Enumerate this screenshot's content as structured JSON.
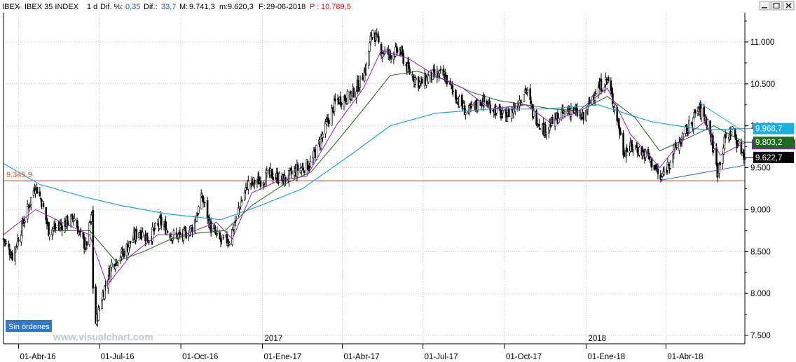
{
  "header": {
    "symbol": "IBEX",
    "name": "IBEX 35 INDEX",
    "timeframe": "1 d",
    "dif_pct_label": "Dif. %:",
    "dif_pct_value": "0,35",
    "dif_label": "Dif.:",
    "dif_value": "33,7",
    "max_label": "M:",
    "max_value": "9.741,3",
    "min_label": "m:",
    "min_value": "9.620,3",
    "date_label": "F:",
    "date_value": "29-06-2018",
    "p_label": "P :",
    "p_value": "10.789,5"
  },
  "window_buttons": [
    "minimize",
    "maximize",
    "close"
  ],
  "orders_badge": "Sin órdenes",
  "watermark": "www.visualchart.com",
  "colors": {
    "price": "#000000",
    "ma_fast": "#8b1fc4",
    "ma_mid": "#1e5e1e",
    "ma_slow": "#19a6de",
    "support_line": "#e0502a",
    "trend_line": "#2a6fd6",
    "label_fast": "#1aaee3",
    "label_mid": "#1e6b1e",
    "label_price": "#000000",
    "label_violet": "#8b1fc4",
    "badge": "#2a7bd0",
    "accent_red": "#d8131a",
    "accent_blue": "#1f58c8"
  },
  "chart_data": {
    "type": "candlestick",
    "instrument": "IBEX 35 INDEX",
    "timeframe": "1 d",
    "x_start": "2016-03-15",
    "x_end": "2018-06-29",
    "ylim": [
      7400,
      11350
    ],
    "y_ticks": [
      7500,
      8000,
      8500,
      9000,
      9500,
      10000,
      10500,
      11000
    ],
    "y_tick_labels": [
      "7.500",
      "8.000",
      "8.500",
      "9.000",
      "9.500",
      "10.000",
      "10.500",
      "11.000"
    ],
    "x_ticks": [
      "2016-04-01",
      "2016-07-01",
      "2016-10-01",
      "2017-01-01",
      "2017-04-01",
      "2017-07-01",
      "2017-10-01",
      "2018-01-01",
      "2018-04-01"
    ],
    "x_tick_labels": [
      "01-Abr-16",
      "01-Jul-16",
      "01-Oct-16",
      "01-Ene-17",
      "01-Abr-17",
      "01-Jul-17",
      "01-Oct-17",
      "01-Ene-18",
      "01-Abr-18"
    ],
    "year_markers": [
      {
        "date": "2017-01-01",
        "label": "2017"
      },
      {
        "date": "2018-01-01",
        "label": "2018"
      }
    ],
    "price_path": [
      [
        "2016-03-15",
        8650
      ],
      [
        "2016-03-25",
        8450
      ],
      [
        "2016-04-08",
        8900
      ],
      [
        "2016-04-20",
        9300
      ],
      [
        "2016-04-27",
        9100
      ],
      [
        "2016-05-05",
        8750
      ],
      [
        "2016-05-20",
        8820
      ],
      [
        "2016-06-03",
        8900
      ],
      [
        "2016-06-09",
        8700
      ],
      [
        "2016-06-16",
        8550
      ],
      [
        "2016-06-23",
        8950
      ],
      [
        "2016-06-24",
        8080
      ],
      [
        "2016-06-27",
        7650
      ],
      [
        "2016-07-05",
        8000
      ],
      [
        "2016-07-15",
        8350
      ],
      [
        "2016-07-29",
        8500
      ],
      [
        "2016-08-15",
        8750
      ],
      [
        "2016-08-25",
        8650
      ],
      [
        "2016-09-08",
        8850
      ],
      [
        "2016-09-20",
        8700
      ],
      [
        "2016-10-03",
        8680
      ],
      [
        "2016-10-15",
        8800
      ],
      [
        "2016-10-25",
        9150
      ],
      [
        "2016-11-04",
        8780
      ],
      [
        "2016-11-15",
        8620
      ],
      [
        "2016-11-25",
        8640
      ],
      [
        "2016-12-05",
        9000
      ],
      [
        "2016-12-15",
        9300
      ],
      [
        "2016-12-30",
        9350
      ],
      [
        "2017-01-10",
        9420
      ],
      [
        "2017-01-25",
        9350
      ],
      [
        "2017-02-10",
        9480
      ],
      [
        "2017-02-25",
        9550
      ],
      [
        "2017-03-10",
        9900
      ],
      [
        "2017-03-25",
        10300
      ],
      [
        "2017-04-10",
        10350
      ],
      [
        "2017-04-20",
        10500
      ],
      [
        "2017-04-28",
        10700
      ],
      [
        "2017-05-05",
        11150
      ],
      [
        "2017-05-15",
        10900
      ],
      [
        "2017-05-25",
        10850
      ],
      [
        "2017-06-05",
        10900
      ],
      [
        "2017-06-15",
        10650
      ],
      [
        "2017-06-28",
        10500
      ],
      [
        "2017-07-10",
        10600
      ],
      [
        "2017-07-25",
        10600
      ],
      [
        "2017-08-10",
        10300
      ],
      [
        "2017-08-20",
        10150
      ],
      [
        "2017-09-05",
        10300
      ],
      [
        "2017-09-20",
        10200
      ],
      [
        "2017-10-01",
        10100
      ],
      [
        "2017-10-15",
        10250
      ],
      [
        "2017-10-25",
        10450
      ],
      [
        "2017-11-02",
        10150
      ],
      [
        "2017-11-15",
        9950
      ],
      [
        "2017-11-30",
        10100
      ],
      [
        "2017-12-15",
        10200
      ],
      [
        "2017-12-29",
        10080
      ],
      [
        "2018-01-10",
        10400
      ],
      [
        "2018-01-25",
        10550
      ],
      [
        "2018-02-05",
        10100
      ],
      [
        "2018-02-12",
        9700
      ],
      [
        "2018-02-25",
        9750
      ],
      [
        "2018-03-10",
        9650
      ],
      [
        "2018-03-20",
        9500
      ],
      [
        "2018-03-26",
        9350
      ],
      [
        "2018-04-10",
        9700
      ],
      [
        "2018-04-25",
        9950
      ],
      [
        "2018-05-08",
        10200
      ],
      [
        "2018-05-18",
        10050
      ],
      [
        "2018-05-25",
        9700
      ],
      [
        "2018-05-29",
        9450
      ],
      [
        "2018-06-07",
        9850
      ],
      [
        "2018-06-15",
        9950
      ],
      [
        "2018-06-22",
        9750
      ],
      [
        "2018-06-29",
        9650
      ]
    ],
    "ma_fast_path": [
      [
        "2016-03-15",
        8700
      ],
      [
        "2016-04-20",
        9000
      ],
      [
        "2016-05-20",
        8850
      ],
      [
        "2016-06-20",
        8700
      ],
      [
        "2016-07-10",
        8100
      ],
      [
        "2016-08-05",
        8450
      ],
      [
        "2016-09-05",
        8700
      ],
      [
        "2016-10-05",
        8700
      ],
      [
        "2016-11-10",
        8850
      ],
      [
        "2016-11-28",
        8650
      ],
      [
        "2016-12-20",
        9200
      ],
      [
        "2017-01-20",
        9350
      ],
      [
        "2017-02-20",
        9400
      ],
      [
        "2017-03-25",
        10000
      ],
      [
        "2017-04-25",
        10450
      ],
      [
        "2017-05-15",
        10900
      ],
      [
        "2017-06-15",
        10800
      ],
      [
        "2017-07-15",
        10600
      ],
      [
        "2017-08-15",
        10450
      ],
      [
        "2017-09-15",
        10200
      ],
      [
        "2017-10-25",
        10250
      ],
      [
        "2017-11-20",
        10050
      ],
      [
        "2017-12-20",
        10150
      ],
      [
        "2018-01-25",
        10450
      ],
      [
        "2018-02-20",
        9900
      ],
      [
        "2018-03-25",
        9500
      ],
      [
        "2018-04-20",
        9850
      ],
      [
        "2018-05-15",
        10050
      ],
      [
        "2018-06-01",
        9650
      ],
      [
        "2018-06-29",
        9800
      ]
    ],
    "ma_mid_path": [
      [
        "2016-05-10",
        8750
      ],
      [
        "2016-06-20",
        8750
      ],
      [
        "2016-07-20",
        8380
      ],
      [
        "2016-08-20",
        8500
      ],
      [
        "2016-09-20",
        8650
      ],
      [
        "2016-10-20",
        8720
      ],
      [
        "2016-11-20",
        8750
      ],
      [
        "2016-12-20",
        9050
      ],
      [
        "2017-01-25",
        9300
      ],
      [
        "2017-02-25",
        9450
      ],
      [
        "2017-03-25",
        9800
      ],
      [
        "2017-04-25",
        10200
      ],
      [
        "2017-05-25",
        10600
      ],
      [
        "2017-06-25",
        10650
      ],
      [
        "2017-07-25",
        10550
      ],
      [
        "2017-08-25",
        10400
      ],
      [
        "2017-09-25",
        10300
      ],
      [
        "2017-10-25",
        10250
      ],
      [
        "2017-11-25",
        10200
      ],
      [
        "2017-12-25",
        10180
      ],
      [
        "2018-01-25",
        10350
      ],
      [
        "2018-02-25",
        10100
      ],
      [
        "2018-03-25",
        9700
      ],
      [
        "2018-04-25",
        9850
      ],
      [
        "2018-05-25",
        10000
      ],
      [
        "2018-06-29",
        9800
      ]
    ],
    "ma_slow_path": [
      [
        "2016-03-15",
        9550
      ],
      [
        "2016-04-25",
        9300
      ],
      [
        "2016-06-15",
        9150
      ],
      [
        "2016-07-25",
        9050
      ],
      [
        "2016-09-15",
        8950
      ],
      [
        "2016-11-15",
        8880
      ],
      [
        "2016-12-30",
        9050
      ],
      [
        "2017-02-15",
        9250
      ],
      [
        "2017-04-10",
        9650
      ],
      [
        "2017-05-25",
        10000
      ],
      [
        "2017-07-15",
        10150
      ],
      [
        "2017-09-15",
        10200
      ],
      [
        "2017-11-15",
        10200
      ],
      [
        "2018-01-15",
        10250
      ],
      [
        "2018-03-15",
        10050
      ],
      [
        "2018-05-15",
        9950
      ],
      [
        "2018-06-29",
        9966.7
      ]
    ],
    "support_level": 9345.9,
    "support_label": "9.345,9",
    "trend_lines": [
      {
        "from": [
          "2018-03-26",
          9350
        ],
        "to": [
          "2018-06-29",
          9530
        ]
      },
      {
        "from": [
          "2018-05-08",
          10280
        ],
        "to": [
          "2018-06-29",
          9920
        ]
      }
    ],
    "last_value_labels": [
      {
        "series": "ma_slow",
        "value": 9966.7,
        "text": "9.966,7"
      },
      {
        "series": "ma_mid",
        "value": 9803.2,
        "text": "9.803,2"
      },
      {
        "series": "price",
        "value": 9622.7,
        "text": "9.622,7"
      }
    ],
    "grid": true,
    "legend": "none"
  }
}
